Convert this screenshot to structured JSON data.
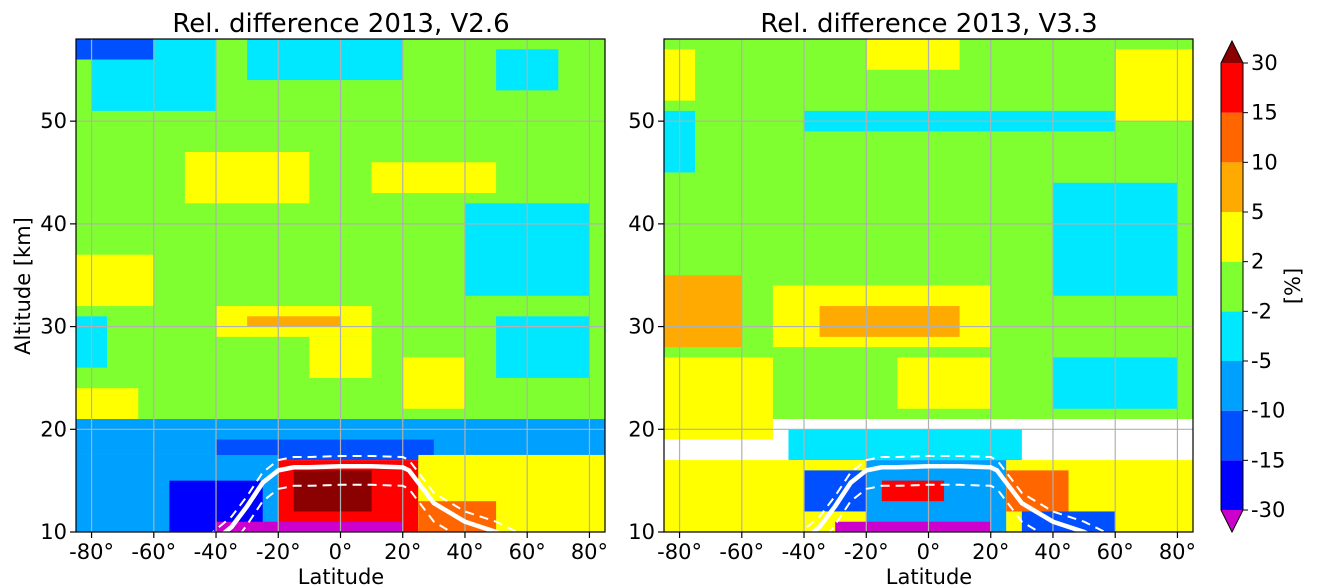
{
  "chart_data": [
    {
      "type": "heatmap",
      "title": "Rel. difference 2013, V2.6",
      "xlabel": "Latitude",
      "ylabel": "Altitude [km]",
      "xlim": [
        -85,
        85
      ],
      "ylim": [
        10,
        58
      ],
      "xticks": [
        -80,
        -60,
        -40,
        -20,
        0,
        20,
        40,
        60,
        80
      ],
      "xtick_labels": [
        "-80°",
        "-60°",
        "-40°",
        "-20°",
        "0°",
        "20°",
        "40°",
        "60°",
        "80°"
      ],
      "yticks": [
        10,
        20,
        30,
        40,
        50
      ],
      "ytick_labels": [
        "10",
        "20",
        "30",
        "40",
        "50"
      ],
      "grid": true,
      "value_unit": "%",
      "regions": [
        {
          "lat": [
            -85,
            85
          ],
          "alt": [
            21,
            58
          ],
          "value": 0
        },
        {
          "lat": [
            -80,
            -40
          ],
          "alt": [
            51,
            58
          ],
          "value": -3
        },
        {
          "lat": [
            -85,
            -60
          ],
          "alt": [
            56,
            58
          ],
          "value": -12
        },
        {
          "lat": [
            -30,
            20
          ],
          "alt": [
            54,
            58
          ],
          "value": -3
        },
        {
          "lat": [
            50,
            70
          ],
          "alt": [
            53,
            57
          ],
          "value": -3
        },
        {
          "lat": [
            -50,
            -10
          ],
          "alt": [
            42,
            47
          ],
          "value": 3
        },
        {
          "lat": [
            10,
            50
          ],
          "alt": [
            43,
            46
          ],
          "value": 3
        },
        {
          "lat": [
            -85,
            -60
          ],
          "alt": [
            32,
            37
          ],
          "value": 3
        },
        {
          "lat": [
            40,
            80
          ],
          "alt": [
            33,
            42
          ],
          "value": -3
        },
        {
          "lat": [
            -40,
            10
          ],
          "alt": [
            29,
            32
          ],
          "value": 4
        },
        {
          "lat": [
            -30,
            0
          ],
          "alt": [
            30,
            31
          ],
          "value": 6
        },
        {
          "lat": [
            -10,
            10
          ],
          "alt": [
            25,
            29
          ],
          "value": 3
        },
        {
          "lat": [
            20,
            40
          ],
          "alt": [
            22,
            27
          ],
          "value": 3
        },
        {
          "lat": [
            50,
            80
          ],
          "alt": [
            25,
            31
          ],
          "value": -3
        },
        {
          "lat": [
            -85,
            -75
          ],
          "alt": [
            26,
            31
          ],
          "value": -3
        },
        {
          "lat": [
            -85,
            -65
          ],
          "alt": [
            21,
            24
          ],
          "value": 3
        },
        {
          "lat": [
            -85,
            85
          ],
          "alt": [
            17.5,
            21
          ],
          "value": -6
        },
        {
          "lat": [
            -40,
            30
          ],
          "alt": [
            17,
            19
          ],
          "value": -12
        },
        {
          "lat": [
            -85,
            -20
          ],
          "alt": [
            10,
            17.5
          ],
          "value": -8
        },
        {
          "lat": [
            -55,
            -25
          ],
          "alt": [
            10,
            15
          ],
          "value": -18
        },
        {
          "lat": [
            -20,
            25
          ],
          "alt": [
            10,
            17
          ],
          "value": 20
        },
        {
          "lat": [
            -15,
            10
          ],
          "alt": [
            12,
            16
          ],
          "value": 35
        },
        {
          "lat": [
            25,
            85
          ],
          "alt": [
            10,
            17.5
          ],
          "value": 3
        },
        {
          "lat": [
            25,
            50
          ],
          "alt": [
            10,
            13
          ],
          "value": 12
        },
        {
          "lat": [
            -40,
            20
          ],
          "alt": [
            10,
            11
          ],
          "value": -35
        }
      ]
    },
    {
      "type": "heatmap",
      "title": "Rel. difference 2013, V3.3",
      "xlabel": "Latitude",
      "ylabel": "",
      "xlim": [
        -85,
        85
      ],
      "ylim": [
        10,
        58
      ],
      "xticks": [
        -80,
        -60,
        -40,
        -20,
        0,
        20,
        40,
        60,
        80
      ],
      "xtick_labels": [
        "-80°",
        "-60°",
        "-40°",
        "-20°",
        "0°",
        "20°",
        "40°",
        "60°",
        "80°"
      ],
      "yticks": [
        10,
        20,
        30,
        40,
        50
      ],
      "ytick_labels": [
        "10",
        "20",
        "30",
        "40",
        "50"
      ],
      "grid": true,
      "value_unit": "%",
      "regions": [
        {
          "lat": [
            -85,
            85
          ],
          "alt": [
            21,
            58
          ],
          "value": 0
        },
        {
          "lat": [
            -20,
            10
          ],
          "alt": [
            55,
            58
          ],
          "value": 4
        },
        {
          "lat": [
            -85,
            -75
          ],
          "alt": [
            52,
            57
          ],
          "value": 3
        },
        {
          "lat": [
            60,
            85
          ],
          "alt": [
            50,
            57
          ],
          "value": 3
        },
        {
          "lat": [
            -40,
            60
          ],
          "alt": [
            49,
            51
          ],
          "value": -3
        },
        {
          "lat": [
            -85,
            -75
          ],
          "alt": [
            45,
            51
          ],
          "value": -3
        },
        {
          "lat": [
            40,
            80
          ],
          "alt": [
            33,
            44
          ],
          "value": -3
        },
        {
          "lat": [
            -85,
            -60
          ],
          "alt": [
            28,
            35
          ],
          "value": 6
        },
        {
          "lat": [
            -50,
            20
          ],
          "alt": [
            28,
            34
          ],
          "value": 4
        },
        {
          "lat": [
            -35,
            10
          ],
          "alt": [
            29,
            32
          ],
          "value": 6
        },
        {
          "lat": [
            -85,
            -50
          ],
          "alt": [
            19,
            27
          ],
          "value": 4
        },
        {
          "lat": [
            -10,
            20
          ],
          "alt": [
            22,
            27
          ],
          "value": 3
        },
        {
          "lat": [
            -45,
            30
          ],
          "alt": [
            17,
            20
          ],
          "value": -4
        },
        {
          "lat": [
            40,
            80
          ],
          "alt": [
            22,
            27
          ],
          "value": -3
        },
        {
          "lat": [
            -85,
            -20
          ],
          "alt": [
            10,
            17
          ],
          "value": 4
        },
        {
          "lat": [
            -40,
            -20
          ],
          "alt": [
            12,
            16
          ],
          "value": -12
        },
        {
          "lat": [
            -20,
            25
          ],
          "alt": [
            10,
            17
          ],
          "value": -6
        },
        {
          "lat": [
            -15,
            5
          ],
          "alt": [
            13,
            15
          ],
          "value": 20
        },
        {
          "lat": [
            25,
            85
          ],
          "alt": [
            10,
            17
          ],
          "value": 3
        },
        {
          "lat": [
            25,
            45
          ],
          "alt": [
            12,
            16
          ],
          "value": 12
        },
        {
          "lat": [
            -30,
            20
          ],
          "alt": [
            10,
            11
          ],
          "value": -35
        },
        {
          "lat": [
            30,
            60
          ],
          "alt": [
            10,
            12
          ],
          "value": -12
        }
      ]
    }
  ],
  "overlay": {
    "tropopause_lat": [
      -85,
      -55,
      -45,
      -35,
      -30,
      -25,
      -20,
      -15,
      -10,
      0,
      10,
      20,
      22,
      25,
      30,
      40,
      50,
      60,
      70,
      85
    ],
    "tropopause_alt": [
      7,
      7,
      8,
      10.5,
      12.5,
      14.8,
      16.0,
      16.3,
      16.3,
      16.4,
      16.4,
      16.3,
      16.0,
      14.8,
      12.8,
      11.0,
      10.0,
      8.5,
      7.5,
      7
    ],
    "upper_offset": 1.0,
    "lower_offset": 1.8
  },
  "colorbar": {
    "label": "[%]",
    "bounds": [
      -30,
      -15,
      -10,
      -5,
      -2,
      2,
      5,
      10,
      15,
      30
    ],
    "tick_labels": [
      "-30",
      "-15",
      "-10",
      "-5",
      "-2",
      "2",
      "5",
      "10",
      "15",
      "30"
    ],
    "colors": [
      "#0000ff",
      "#0050ff",
      "#00a0ff",
      "#00e8ff",
      "#80ff30",
      "#ffff00",
      "#ffaa00",
      "#ff6600",
      "#ff0000"
    ],
    "under_color": "#cc00cc",
    "over_color": "#8b0000"
  }
}
